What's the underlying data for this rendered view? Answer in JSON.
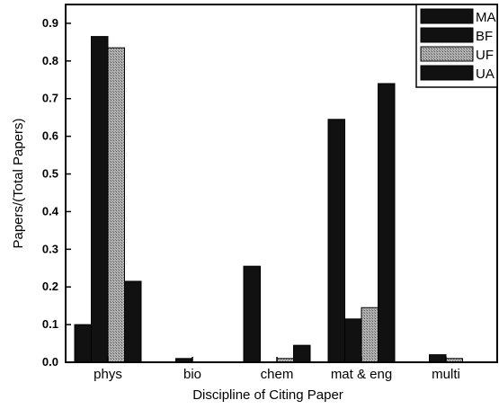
{
  "chart_data": {
    "type": "bar",
    "title": "",
    "xlabel": "Discipline of Citing Paper",
    "ylabel": "Papers/(Total Papers)",
    "categories": [
      "phys",
      "bio",
      "chem",
      "mat & eng",
      "multi"
    ],
    "ylim": [
      0,
      0.95
    ],
    "yticks": [
      "0.0",
      "0.1",
      "0.2",
      "0.3",
      "0.4",
      "0.5",
      "0.6",
      "0.7",
      "0.8",
      "0.9"
    ],
    "grid": false,
    "legend_position": "top-right",
    "series": [
      {
        "name": "MA",
        "color": "#111111",
        "pattern": "solid",
        "values": [
          0.1,
          0.0,
          0.255,
          0.645,
          0.0
        ]
      },
      {
        "name": "BF",
        "color": "#111111",
        "pattern": "solid",
        "values": [
          0.865,
          0.01,
          0.0,
          0.115,
          0.02
        ]
      },
      {
        "name": "UF",
        "color": "#9a9a9a",
        "pattern": "dotted",
        "values": [
          0.835,
          0.0,
          0.01,
          0.145,
          0.01
        ]
      },
      {
        "name": "UA",
        "color": "#111111",
        "pattern": "solid",
        "values": [
          0.215,
          0.0,
          0.045,
          0.74,
          0.0
        ]
      }
    ]
  }
}
